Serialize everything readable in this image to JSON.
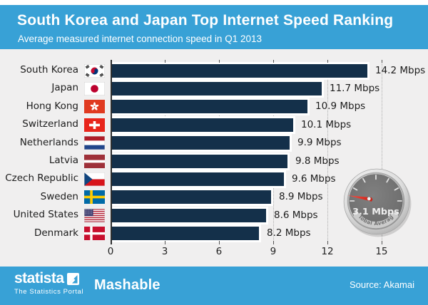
{
  "header": {
    "title": "South Korea and Japan Top Internet Speed Ranking",
    "subtitle": "Average measured internet connection speed in Q1 2013"
  },
  "chart_data": {
    "type": "bar",
    "orientation": "horizontal",
    "title": "South Korea and Japan Top Internet Speed Ranking",
    "subtitle": "Average measured internet connection speed in Q1 2013",
    "unit": "Mbps",
    "categories": [
      "South Korea",
      "Japan",
      "Hong Kong",
      "Switzerland",
      "Netherlands",
      "Latvia",
      "Czech Republic",
      "Sweden",
      "United States",
      "Denmark"
    ],
    "values": [
      14.2,
      11.7,
      10.9,
      10.1,
      9.9,
      9.8,
      9.6,
      8.9,
      8.6,
      8.2
    ],
    "value_labels": [
      "14.2 Mbps",
      "11.7 Mbps",
      "10.9 Mbps",
      "10.1 Mbps",
      "9.9 Mbps",
      "9.8 Mbps",
      "9.6 Mbps",
      "8.9 Mbps",
      "8.6 Mbps",
      "8.2 Mbps"
    ],
    "flags": [
      "south-korea",
      "japan",
      "hong-kong",
      "switzerland",
      "netherlands",
      "latvia",
      "czech-republic",
      "sweden",
      "united-states",
      "denmark"
    ],
    "x_ticks": [
      0,
      3,
      6,
      9,
      12,
      15
    ],
    "xlim": [
      0,
      15.8
    ],
    "grid": "dotted-vertical",
    "legend": "none",
    "bar_color": "#14304A"
  },
  "gauge": {
    "value": 3.1,
    "value_label": "3.1 Mbps",
    "caption": "Global Average"
  },
  "footer": {
    "brand": "statista",
    "brand_tagline": "The Statistics Portal",
    "partner": "Mashable",
    "source": "Source: Akamai"
  },
  "colors": {
    "accent_blue": "#38A1D6",
    "bar_navy": "#14304A",
    "body_bg": "#F0EFEF",
    "needle_red": "#E02519"
  }
}
